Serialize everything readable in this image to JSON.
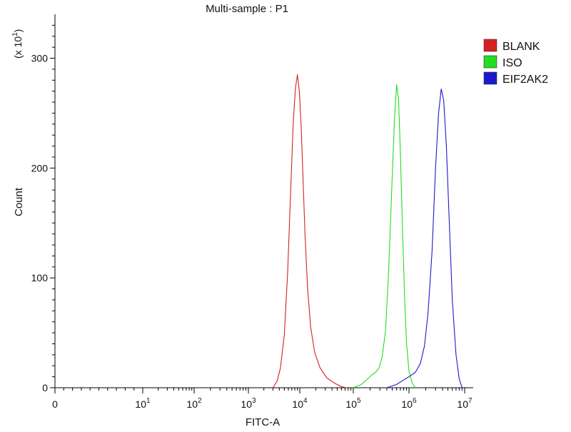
{
  "chart_data": {
    "type": "line",
    "title": "Multi-sample : P1",
    "xlabel": "FITC-A",
    "ylabel": "Count",
    "y_multiplier_label": "(x 10",
    "y_multiplier_exp": "1",
    "x_scale": "log",
    "xlim": [
      0,
      10000000
    ],
    "ylim": [
      0,
      340
    ],
    "x_ticks": [
      {
        "value": 0,
        "base": "0",
        "exp": ""
      },
      {
        "value": 10,
        "base": "10",
        "exp": "1"
      },
      {
        "value": 100,
        "base": "10",
        "exp": "2"
      },
      {
        "value": 1000,
        "base": "10",
        "exp": "3"
      },
      {
        "value": 10000,
        "base": "10",
        "exp": "4"
      },
      {
        "value": 100000,
        "base": "10",
        "exp": "5"
      },
      {
        "value": 1000000,
        "base": "10",
        "exp": "6"
      },
      {
        "value": 10000000,
        "base": "10",
        "exp": "7"
      }
    ],
    "y_ticks": [
      "0",
      "100",
      "200",
      "300"
    ],
    "y_tick_values": [
      0,
      100,
      200,
      300
    ],
    "legend_position": "top-right",
    "series": [
      {
        "name": "BLANK",
        "color": "#d62020",
        "x": [
          3000,
          3600,
          4200,
          5000,
          5800,
          6600,
          7400,
          8200,
          9000,
          9800,
          10600,
          11500,
          12500,
          14000,
          16000,
          19000,
          24000,
          32000,
          45000,
          60000,
          75000
        ],
        "y": [
          0,
          6,
          18,
          48,
          105,
          175,
          238,
          272,
          285,
          270,
          238,
          190,
          140,
          90,
          55,
          32,
          18,
          9,
          4,
          1,
          0
        ]
      },
      {
        "name": "ISO",
        "color": "#22dd22",
        "x": [
          100000,
          140000,
          180000,
          220000,
          250000,
          290000,
          330000,
          380000,
          430000,
          490000,
          550000,
          600000,
          650000,
          700000,
          760000,
          830000,
          900000,
          1000000,
          1150000,
          1300000
        ],
        "y": [
          0,
          3,
          8,
          12,
          14,
          18,
          28,
          52,
          105,
          180,
          245,
          276,
          262,
          215,
          150,
          85,
          42,
          15,
          4,
          0
        ]
      },
      {
        "name": "EIF2AK2",
        "color": "#1a1acc",
        "x": [
          400000,
          600000,
          800000,
          1000000,
          1300000,
          1600000,
          1900000,
          2200000,
          2600000,
          3000000,
          3400000,
          3800000,
          4200000,
          4700000,
          5300000,
          6000000,
          7000000,
          8000000,
          9000000
        ],
        "y": [
          0,
          3,
          7,
          10,
          14,
          22,
          38,
          68,
          125,
          200,
          250,
          272,
          262,
          220,
          150,
          80,
          30,
          8,
          0
        ]
      }
    ]
  }
}
